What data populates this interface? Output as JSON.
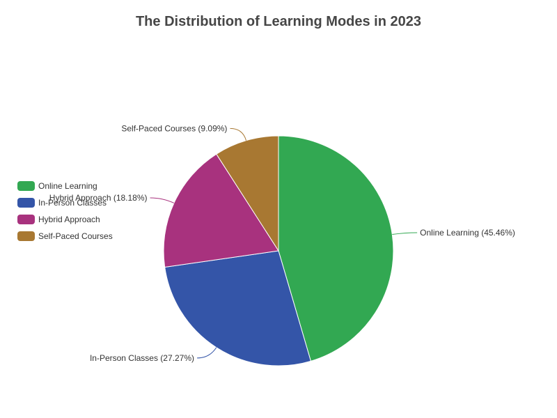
{
  "chart_data": {
    "type": "pie",
    "title": "The Distribution of Learning Modes in 2023",
    "series": [
      {
        "name": "Online Learning",
        "value": 45.46,
        "label": "Online Learning (45.46%)",
        "color": "#32a852"
      },
      {
        "name": "In-Person Classes",
        "value": 27.27,
        "label": "In-Person Classes (27.27%)",
        "color": "#3455a8"
      },
      {
        "name": "Hybrid Approach",
        "value": 18.18,
        "label": "Hybrid Approach (18.18%)",
        "color": "#a8327e"
      },
      {
        "name": "Self-Paced Courses",
        "value": 9.09,
        "label": "Self-Paced Courses (9.09%)",
        "color": "#a87832"
      }
    ],
    "legend": {
      "position": "left"
    }
  }
}
